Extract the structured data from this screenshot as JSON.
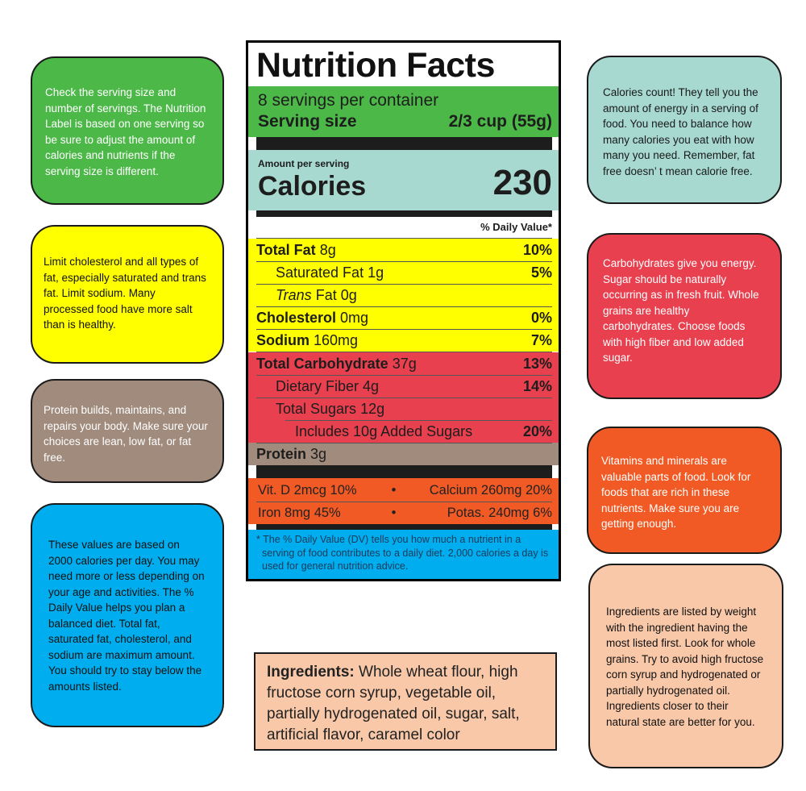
{
  "label": {
    "title": "Nutrition Facts",
    "servings_per_container": "8 servings per container",
    "serving_size_label": "Serving size",
    "serving_size_value": "2/3 cup (55g)",
    "amount_per_serving": "Amount per serving",
    "calories_label": "Calories",
    "calories_value": "230",
    "daily_value_header": "% Daily Value*",
    "nutrients": [
      {
        "name": "Total Fat",
        "amount": "8g",
        "dv": "10%"
      },
      {
        "name": "Saturated Fat",
        "amount": "1g",
        "dv": "5%"
      },
      {
        "name": "Trans",
        "name_suffix": "Fat",
        "amount": "0g",
        "dv": ""
      },
      {
        "name": "Cholesterol",
        "amount": "0mg",
        "dv": "0%"
      },
      {
        "name": "Sodium",
        "amount": "160mg",
        "dv": "7%"
      },
      {
        "name": "Total Carbohydrate",
        "amount": "37g",
        "dv": "13%"
      },
      {
        "name": "Dietary Fiber",
        "amount": "4g",
        "dv": "14%"
      },
      {
        "name": "Total Sugars",
        "amount": "12g",
        "dv": ""
      },
      {
        "name": "Includes 10g Added Sugars",
        "amount": "",
        "dv": "20%"
      },
      {
        "name": "Protein",
        "amount": "3g",
        "dv": ""
      }
    ],
    "vitamins_row1": {
      "left": "Vit. D 2mcg 10%",
      "sep": "•",
      "right": "Calcium 260mg 20%"
    },
    "vitamins_row2": {
      "left": "Iron 8mg 45%",
      "sep": "•",
      "right": "Potas. 240mg 6%"
    },
    "footnote": "* The % Daily Value (DV) tells you how much a nutrient in a serving of food contributes to a daily diet. 2,000 calories a day is used for general nutrition advice."
  },
  "ingredients": {
    "heading": "Ingredients:",
    "text": " Whole wheat flour, high fructose corn syrup, vegetable oil, partially hydrogenated oil, sugar, salt, artificial flavor, caramel color"
  },
  "notes": {
    "serving": "Check the serving size and\nnumber of servings. The Nutrition\nLabel is based on one serving so\nbe sure to adjust the amount of\ncalories and nutrients if the\nserving size is different.",
    "limit": "Limit cholesterol and all types of\nfat, especially saturated and trans\nfat. Limit sodium. Many\nprocessed food have more salt\nthan is healthy.",
    "protein": "Protein builds, maintains, and\nrepairs your body. Make sure your\nchoices are lean, low fat, or fat\nfree.",
    "values": "These values are based on\n2000 calories per day. You may\nneed more or less depending on\nyour age and activities. The %\nDaily Value helps you plan a\nbalanced diet. Total fat,\nsaturated fat, cholesterol, and\nsodium are maximum amount.\nYou should try to stay below the\namounts listed.",
    "calories": "Calories count!  They tell you the\namount of energy in a serving of\nfood. You need to balance how\nmany calories you eat with how\nmany you need. Remember, fat\nfree doesn’   t mean calorie free.",
    "carbs": "Carbohydrates give you energy.\nSugar should be naturally\noccurring as in fresh fruit. Whole\ngrains are healthy\ncarbohydrates. Choose foods\nwith high fiber and low added\nsugar.",
    "vitamins": "Vitamins and minerals are\nvaluable parts of food. Look for\nfoods that are rich in these\nnutrients. Make sure you are\ngetting enough.",
    "ingredients": "Ingredients are listed by weight\nwith the ingredient having the\nmost listed first. Look for whole\ngrains. Try to avoid high fructose\ncorn syrup and hydrogenated or\npartially hydrogenated oil.\nIngredients closer to their\nnatural state are better for you."
  },
  "colors": {
    "green": "#4cb848",
    "yellow": "#ffff00",
    "brown": "#a08b7d",
    "blue": "#00aeef",
    "teal": "#a7d9d1",
    "red": "#e8404f",
    "orange": "#f15a24",
    "peach": "#f8c8a8"
  }
}
